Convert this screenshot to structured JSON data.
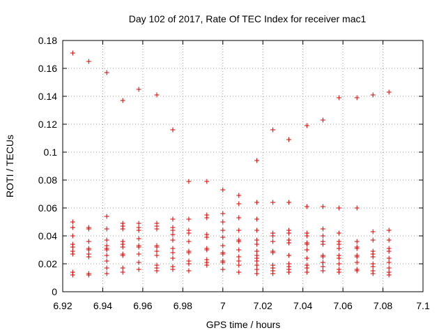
{
  "chart_data": {
    "type": "scatter",
    "title": "Day 102 of 2017, Rate Of TEC Index for receiver mac1",
    "xlabel": "GPS time / hours",
    "ylabel": "ROTI / TECUs",
    "xlim": [
      6.92,
      7.1
    ],
    "ylim": [
      0,
      0.18
    ],
    "xticks": [
      6.92,
      6.94,
      6.96,
      6.98,
      7.0,
      7.02,
      7.04,
      7.06,
      7.08,
      7.1
    ],
    "xtick_labels": [
      "6.92",
      "6.94",
      "6.96",
      "6.98",
      "7",
      "7.02",
      "7.04",
      "7.06",
      "7.08",
      "7.1"
    ],
    "yticks": [
      0,
      0.02,
      0.04,
      0.06,
      0.08,
      0.1,
      0.12,
      0.14,
      0.16,
      0.18
    ],
    "ytick_labels": [
      "0",
      "0.02",
      "0.04",
      "0.06",
      "0.08",
      "0.1",
      "0.12",
      "0.14",
      "0.16",
      "0.18"
    ],
    "grid": true,
    "marker": "+",
    "marker_color": "#dd0000",
    "series": [
      {
        "name": "ROTI",
        "points": [
          [
            6.925,
            0.171
          ],
          [
            6.925,
            0.05
          ],
          [
            6.925,
            0.046
          ],
          [
            6.925,
            0.04
          ],
          [
            6.925,
            0.034
          ],
          [
            6.925,
            0.032
          ],
          [
            6.925,
            0.029
          ],
          [
            6.925,
            0.027
          ],
          [
            6.925,
            0.014
          ],
          [
            6.925,
            0.012
          ],
          [
            6.933,
            0.165
          ],
          [
            6.933,
            0.046
          ],
          [
            6.933,
            0.045
          ],
          [
            6.933,
            0.036
          ],
          [
            6.933,
            0.031
          ],
          [
            6.933,
            0.03
          ],
          [
            6.933,
            0.027
          ],
          [
            6.933,
            0.025
          ],
          [
            6.933,
            0.013
          ],
          [
            6.933,
            0.012
          ],
          [
            6.942,
            0.157
          ],
          [
            6.942,
            0.054
          ],
          [
            6.942,
            0.045
          ],
          [
            6.942,
            0.037
          ],
          [
            6.942,
            0.033
          ],
          [
            6.942,
            0.031
          ],
          [
            6.942,
            0.03
          ],
          [
            6.942,
            0.026
          ],
          [
            6.942,
            0.022
          ],
          [
            6.942,
            0.017
          ],
          [
            6.942,
            0.013
          ],
          [
            6.95,
            0.137
          ],
          [
            6.95,
            0.049
          ],
          [
            6.95,
            0.047
          ],
          [
            6.95,
            0.045
          ],
          [
            6.95,
            0.036
          ],
          [
            6.95,
            0.034
          ],
          [
            6.95,
            0.032
          ],
          [
            6.95,
            0.027
          ],
          [
            6.95,
            0.026
          ],
          [
            6.95,
            0.017
          ],
          [
            6.95,
            0.014
          ],
          [
            6.958,
            0.145
          ],
          [
            6.958,
            0.049
          ],
          [
            6.958,
            0.046
          ],
          [
            6.958,
            0.044
          ],
          [
            6.958,
            0.038
          ],
          [
            6.958,
            0.033
          ],
          [
            6.958,
            0.032
          ],
          [
            6.958,
            0.027
          ],
          [
            6.958,
            0.021
          ],
          [
            6.958,
            0.016
          ],
          [
            6.967,
            0.141
          ],
          [
            6.967,
            0.049
          ],
          [
            6.967,
            0.047
          ],
          [
            6.967,
            0.045
          ],
          [
            6.967,
            0.033
          ],
          [
            6.967,
            0.032
          ],
          [
            6.967,
            0.029
          ],
          [
            6.967,
            0.026
          ],
          [
            6.967,
            0.019
          ],
          [
            6.967,
            0.017
          ],
          [
            6.967,
            0.015
          ],
          [
            6.975,
            0.116
          ],
          [
            6.975,
            0.052
          ],
          [
            6.975,
            0.046
          ],
          [
            6.975,
            0.044
          ],
          [
            6.975,
            0.041
          ],
          [
            6.975,
            0.037
          ],
          [
            6.975,
            0.031
          ],
          [
            6.975,
            0.028
          ],
          [
            6.975,
            0.024
          ],
          [
            6.975,
            0.018
          ],
          [
            6.975,
            0.016
          ],
          [
            6.983,
            0.079
          ],
          [
            6.983,
            0.052
          ],
          [
            6.983,
            0.044
          ],
          [
            6.983,
            0.042
          ],
          [
            6.983,
            0.036
          ],
          [
            6.983,
            0.029
          ],
          [
            6.983,
            0.028
          ],
          [
            6.983,
            0.022
          ],
          [
            6.983,
            0.02
          ],
          [
            6.983,
            0.015
          ],
          [
            6.992,
            0.079
          ],
          [
            6.992,
            0.055
          ],
          [
            6.992,
            0.053
          ],
          [
            6.992,
            0.041
          ],
          [
            6.992,
            0.039
          ],
          [
            6.992,
            0.031
          ],
          [
            6.992,
            0.03
          ],
          [
            6.992,
            0.023
          ],
          [
            6.992,
            0.021
          ],
          [
            6.992,
            0.019
          ],
          [
            7.0,
            0.073
          ],
          [
            7.0,
            0.056
          ],
          [
            7.0,
            0.05
          ],
          [
            7.0,
            0.044
          ],
          [
            7.0,
            0.039
          ],
          [
            7.0,
            0.033
          ],
          [
            7.0,
            0.028
          ],
          [
            7.0,
            0.027
          ],
          [
            7.0,
            0.022
          ],
          [
            7.0,
            0.021
          ],
          [
            7.0,
            0.016
          ],
          [
            7.008,
            0.069
          ],
          [
            7.008,
            0.063
          ],
          [
            7.008,
            0.053
          ],
          [
            7.008,
            0.044
          ],
          [
            7.008,
            0.037
          ],
          [
            7.008,
            0.036
          ],
          [
            7.008,
            0.03
          ],
          [
            7.008,
            0.025
          ],
          [
            7.008,
            0.022
          ],
          [
            7.008,
            0.019
          ],
          [
            7.008,
            0.014
          ],
          [
            7.017,
            0.094
          ],
          [
            7.017,
            0.064
          ],
          [
            7.017,
            0.052
          ],
          [
            7.017,
            0.044
          ],
          [
            7.017,
            0.037
          ],
          [
            7.017,
            0.034
          ],
          [
            7.017,
            0.029
          ],
          [
            7.017,
            0.026
          ],
          [
            7.017,
            0.024
          ],
          [
            7.017,
            0.022
          ],
          [
            7.017,
            0.019
          ],
          [
            7.017,
            0.016
          ],
          [
            7.017,
            0.013
          ],
          [
            7.025,
            0.116
          ],
          [
            7.025,
            0.064
          ],
          [
            7.025,
            0.042
          ],
          [
            7.025,
            0.04
          ],
          [
            7.025,
            0.036
          ],
          [
            7.025,
            0.029
          ],
          [
            7.025,
            0.028
          ],
          [
            7.025,
            0.019
          ],
          [
            7.025,
            0.017
          ],
          [
            7.025,
            0.015
          ],
          [
            7.025,
            0.013
          ],
          [
            7.033,
            0.109
          ],
          [
            7.033,
            0.064
          ],
          [
            7.033,
            0.044
          ],
          [
            7.033,
            0.042
          ],
          [
            7.033,
            0.037
          ],
          [
            7.033,
            0.035
          ],
          [
            7.033,
            0.026
          ],
          [
            7.033,
            0.02
          ],
          [
            7.033,
            0.018
          ],
          [
            7.033,
            0.016
          ],
          [
            7.033,
            0.014
          ],
          [
            7.042,
            0.119
          ],
          [
            7.042,
            0.061
          ],
          [
            7.042,
            0.042
          ],
          [
            7.042,
            0.04
          ],
          [
            7.042,
            0.035
          ],
          [
            7.042,
            0.034
          ],
          [
            7.042,
            0.03
          ],
          [
            7.042,
            0.024
          ],
          [
            7.042,
            0.019
          ],
          [
            7.042,
            0.017
          ],
          [
            7.042,
            0.014
          ],
          [
            7.05,
            0.123
          ],
          [
            7.05,
            0.061
          ],
          [
            7.05,
            0.045
          ],
          [
            7.05,
            0.04
          ],
          [
            7.05,
            0.036
          ],
          [
            7.05,
            0.034
          ],
          [
            7.05,
            0.026
          ],
          [
            7.05,
            0.025
          ],
          [
            7.05,
            0.021
          ],
          [
            7.05,
            0.018
          ],
          [
            7.05,
            0.015
          ],
          [
            7.058,
            0.139
          ],
          [
            7.058,
            0.06
          ],
          [
            7.058,
            0.042
          ],
          [
            7.058,
            0.036
          ],
          [
            7.058,
            0.034
          ],
          [
            7.058,
            0.031
          ],
          [
            7.058,
            0.026
          ],
          [
            7.058,
            0.024
          ],
          [
            7.058,
            0.02
          ],
          [
            7.058,
            0.016
          ],
          [
            7.058,
            0.014
          ],
          [
            7.067,
            0.139
          ],
          [
            7.067,
            0.06
          ],
          [
            7.067,
            0.036
          ],
          [
            7.067,
            0.032
          ],
          [
            7.067,
            0.031
          ],
          [
            7.067,
            0.026
          ],
          [
            7.067,
            0.025
          ],
          [
            7.067,
            0.021
          ],
          [
            7.067,
            0.016
          ],
          [
            7.067,
            0.015
          ],
          [
            7.075,
            0.141
          ],
          [
            7.075,
            0.043
          ],
          [
            7.075,
            0.037
          ],
          [
            7.075,
            0.029
          ],
          [
            7.075,
            0.027
          ],
          [
            7.075,
            0.025
          ],
          [
            7.075,
            0.02
          ],
          [
            7.075,
            0.018
          ],
          [
            7.075,
            0.015
          ],
          [
            7.075,
            0.013
          ],
          [
            7.083,
            0.143
          ],
          [
            7.083,
            0.044
          ],
          [
            7.083,
            0.037
          ],
          [
            7.083,
            0.031
          ],
          [
            7.083,
            0.029
          ],
          [
            7.083,
            0.024
          ],
          [
            7.083,
            0.021
          ],
          [
            7.083,
            0.017
          ],
          [
            7.083,
            0.014
          ],
          [
            7.083,
            0.012
          ]
        ]
      }
    ]
  }
}
